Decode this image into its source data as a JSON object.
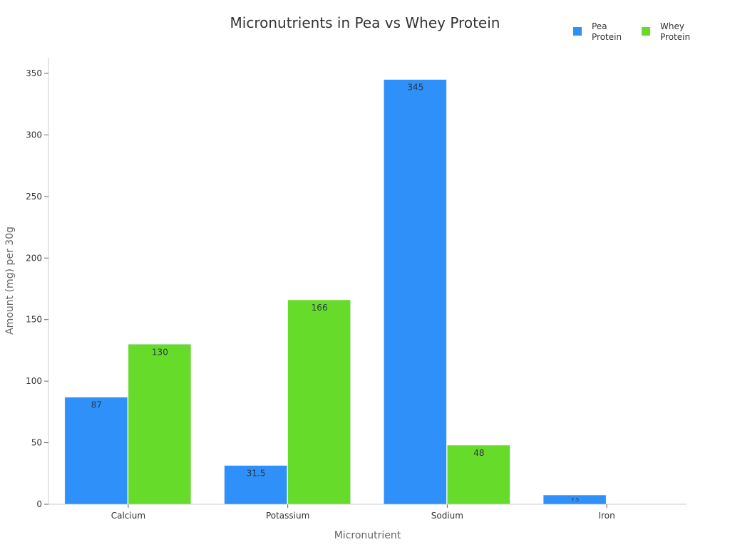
{
  "title": "Micronutrients in Pea vs Whey Protein",
  "legend": [
    {
      "label_line1": "Pea",
      "label_line2": "Protein",
      "color": "#2e90f8"
    },
    {
      "label_line1": "Whey",
      "label_line2": "Protein",
      "color": "#67db29"
    }
  ],
  "chart_data": {
    "type": "bar",
    "title": "Micronutrients in Pea vs Whey Protein",
    "xlabel": "Micronutrient",
    "ylabel": "Amount (mg) per 30g",
    "categories": [
      "Calcium",
      "Potassium",
      "Sodium",
      "Iron"
    ],
    "series": [
      {
        "name": "Pea Protein",
        "color": "#2e90f8",
        "values": [
          87,
          31.5,
          345,
          7.5
        ]
      },
      {
        "name": "Whey Protein",
        "color": "#67db29",
        "values": [
          130,
          166,
          48,
          0
        ]
      }
    ],
    "ylim": [
      0,
      350
    ],
    "yticks": [
      0,
      50,
      100,
      150,
      200,
      250,
      300,
      350
    ],
    "grid": false,
    "legend_position": "top-right"
  }
}
